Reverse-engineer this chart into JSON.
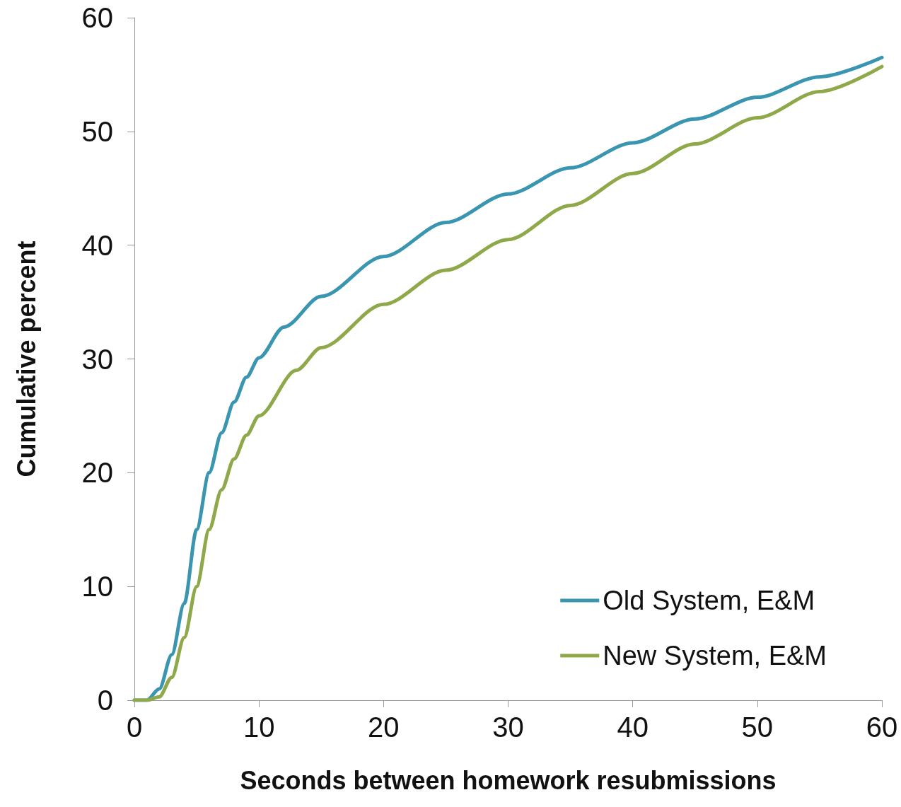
{
  "chart_data": {
    "type": "line",
    "xlabel": "Seconds between homework resubmissions",
    "ylabel": "Cumulative percent",
    "xlim": [
      0,
      60
    ],
    "xticks": [
      0,
      10,
      20,
      30,
      40,
      50,
      60
    ],
    "ylim": [
      0,
      60
    ],
    "yticks": [
      0,
      10,
      20,
      30,
      40,
      50,
      60
    ],
    "grid": false,
    "legend": "bottom right",
    "marker": "none",
    "line_style": "solid",
    "series": [
      {
        "name": "Old System, E&M",
        "color": "#3a95b1",
        "x": [
          0,
          1,
          2,
          3,
          4,
          5,
          6,
          7,
          8,
          9,
          10,
          12,
          15,
          20,
          25,
          30,
          35,
          40,
          45,
          50,
          55,
          60
        ],
        "values": [
          0,
          0,
          1,
          4,
          8.5,
          15,
          20,
          23.5,
          26.2,
          28.4,
          30.1,
          32.8,
          35.5,
          39,
          42,
          44.5,
          46.8,
          49,
          51.1,
          53,
          54.8,
          56.5
        ]
      },
      {
        "name": "New System, E&M",
        "color": "#8fa94a",
        "x": [
          0,
          1,
          2,
          3,
          4,
          5,
          6,
          7,
          8,
          9,
          10,
          13,
          15,
          20,
          25,
          30,
          35,
          40,
          45,
          50,
          55,
          60
        ],
        "values": [
          0,
          0,
          0.3,
          2,
          5.5,
          10,
          15,
          18.5,
          21.2,
          23.3,
          25,
          29,
          31,
          34.8,
          37.8,
          40.5,
          43.5,
          46.3,
          48.9,
          51.2,
          53.5,
          55.7
        ]
      }
    ]
  }
}
